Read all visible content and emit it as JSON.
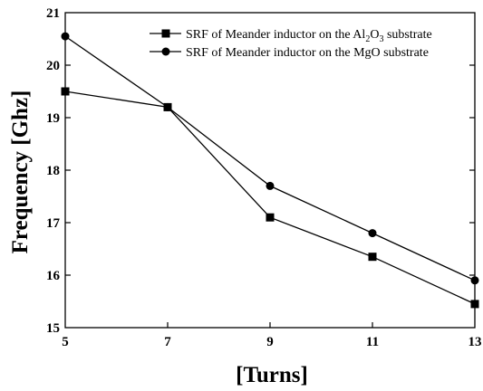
{
  "chart_data": {
    "type": "line",
    "xlabel": "[Turns]",
    "ylabel": "Frequency [Ghz]",
    "x": [
      5,
      7,
      9,
      11,
      13
    ],
    "xticks": [
      "5",
      "7",
      "9",
      "11",
      "13"
    ],
    "yticks": [
      "15",
      "16",
      "17",
      "18",
      "19",
      "20",
      "21"
    ],
    "xlim": [
      5,
      13
    ],
    "ylim": [
      15,
      21
    ],
    "grid": false,
    "legend_position": "top-right",
    "series": [
      {
        "name": "SRF of Meander inductor on the Al2O3 substrate",
        "marker": "square",
        "color": "#000000",
        "values": [
          19.5,
          19.2,
          17.1,
          16.35,
          15.45
        ]
      },
      {
        "name": "SRF of Meander inductor on the MgO substrate",
        "marker": "circle",
        "color": "#000000",
        "values": [
          20.55,
          19.2,
          17.7,
          16.8,
          15.9
        ]
      }
    ],
    "legend": {
      "al2o3": {
        "before": "SRF of Meander inductor on the Al",
        "sub1": "2",
        "mid": "O",
        "sub2": "3",
        "after": " substrate"
      },
      "mgo": "SRF of Meander inductor on the MgO substrate"
    }
  }
}
